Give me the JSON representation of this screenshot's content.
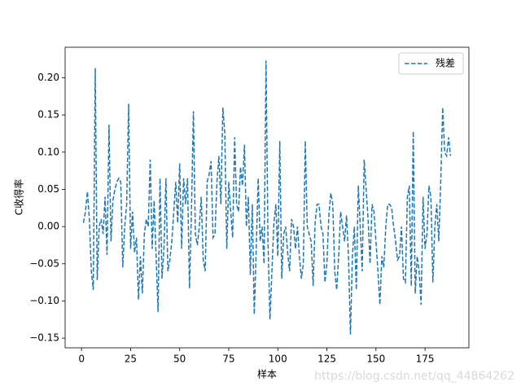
{
  "chart_data": {
    "type": "line",
    "xlabel": "样本",
    "ylabel": "C收得率",
    "watermark": "https://blog.csdn.net/qq_44864262",
    "x": [
      1,
      2,
      3,
      4,
      5,
      6,
      7,
      8,
      9,
      10,
      11,
      12,
      13,
      14,
      15,
      16,
      17,
      18,
      19,
      20,
      21,
      22,
      23,
      24,
      25,
      26,
      27,
      28,
      29,
      30,
      31,
      32,
      33,
      34,
      35,
      36,
      37,
      38,
      39,
      40,
      41,
      42,
      43,
      44,
      45,
      46,
      47,
      48,
      49,
      50,
      51,
      52,
      53,
      54,
      55,
      56,
      57,
      58,
      59,
      60,
      61,
      62,
      63,
      64,
      65,
      66,
      67,
      68,
      69,
      70,
      71,
      72,
      73,
      74,
      75,
      76,
      77,
      78,
      79,
      80,
      81,
      82,
      83,
      84,
      85,
      86,
      87,
      88,
      89,
      90,
      91,
      92,
      93,
      94,
      95,
      96,
      97,
      98,
      99,
      100,
      101,
      102,
      103,
      104,
      105,
      106,
      107,
      108,
      109,
      110,
      111,
      112,
      113,
      114,
      115,
      116,
      117,
      118,
      119,
      120,
      121,
      122,
      123,
      124,
      125,
      126,
      127,
      128,
      129,
      130,
      131,
      132,
      133,
      134,
      135,
      136,
      137,
      138,
      139,
      140,
      141,
      142,
      143,
      144,
      145,
      146,
      147,
      148,
      149,
      150,
      151,
      152,
      153,
      154,
      155,
      156,
      157,
      158,
      159,
      160,
      161,
      162,
      163,
      164,
      165,
      166,
      167,
      168,
      169,
      170,
      171,
      172,
      173,
      174,
      175,
      176,
      177,
      178,
      179,
      180,
      181,
      182,
      183,
      184,
      185,
      186,
      187,
      188
    ],
    "series": [
      {
        "name": "残差",
        "color": "#1f77b4",
        "values": [
          0.005,
          0.02,
          0.047,
          0.01,
          -0.06,
          -0.085,
          0.213,
          -0.072,
          0.0,
          0.01,
          -0.01,
          0.04,
          -0.038,
          0.137,
          -0.02,
          0.035,
          0.05,
          0.06,
          0.065,
          0.06,
          -0.055,
          0.0,
          0.03,
          0.165,
          -0.03,
          0.02,
          -0.035,
          -0.015,
          -0.098,
          -0.04,
          -0.09,
          -0.01,
          0.01,
          0.0,
          0.09,
          -0.03,
          0.035,
          -0.04,
          -0.115,
          0.065,
          -0.07,
          -0.03,
          0.065,
          -0.06,
          -0.045,
          -0.02,
          0.02,
          0.06,
          0.005,
          0.085,
          -0.03,
          0.065,
          0.03,
          0.065,
          -0.083,
          0.02,
          0.155,
          -0.01,
          -0.025,
          0.0,
          0.04,
          -0.045,
          -0.06,
          0.06,
          0.07,
          0.088,
          -0.015,
          -0.01,
          0.06,
          0.095,
          0.03,
          0.16,
          0.125,
          -0.03,
          0.06,
          0.02,
          -0.015,
          0.12,
          0.03,
          0.02,
          0.08,
          0.055,
          0.11,
          0.0,
          0.04,
          -0.065,
          0.03,
          -0.118,
          -0.03,
          0.065,
          -0.02,
          0.0,
          -0.05,
          0.223,
          -0.02,
          -0.125,
          -0.06,
          0.005,
          0.03,
          -0.04,
          0.115,
          -0.07,
          -0.01,
          0.0,
          -0.035,
          -0.06,
          0.01,
          0.0,
          -0.03,
          0.0,
          -0.04,
          -0.07,
          -0.05,
          0.115,
          0.0,
          -0.01,
          -0.02,
          -0.08,
          0.005,
          0.03,
          0.03,
          0.0,
          -0.01,
          -0.075,
          -0.05,
          0.015,
          0.045,
          0.03,
          -0.06,
          -0.085,
          -0.04,
          0.02,
          0.0,
          -0.02,
          0.015,
          -0.04,
          -0.145,
          -0.04,
          0.0,
          -0.085,
          0.055,
          0.0,
          -0.06,
          0.09,
          0.05,
          0.01,
          -0.05,
          0.03,
          0.02,
          -0.02,
          -0.06,
          -0.105,
          -0.04,
          -0.055,
          0.0,
          0.03,
          0.03,
          0.025,
          0.0,
          -0.02,
          -0.045,
          -0.04,
          0.0,
          -0.07,
          -0.075,
          0.04,
          0.055,
          -0.08,
          0.128,
          -0.09,
          -0.04,
          -0.06,
          -0.105,
          0.04,
          -0.03,
          -0.01,
          0.055,
          0.04,
          -0.075,
          0.0,
          0.03,
          -0.02,
          0.06,
          0.16,
          0.1,
          0.095,
          0.12,
          0.095
        ]
      }
    ],
    "xlim": [
      -8.35,
      197.35
    ],
    "ylim": [
      -0.163,
      0.241
    ],
    "xticks": [
      0,
      25,
      50,
      75,
      100,
      125,
      150,
      175
    ],
    "yticks": [
      {
        "value": -0.15,
        "label": "−0.15"
      },
      {
        "value": -0.1,
        "label": "−0.10"
      },
      {
        "value": -0.05,
        "label": "−0.05"
      },
      {
        "value": 0,
        "label": "0.00"
      },
      {
        "value": 0.05,
        "label": "0.05"
      },
      {
        "value": 0.1,
        "label": "0.10"
      },
      {
        "value": 0.15,
        "label": "0.15"
      },
      {
        "value": 0.2,
        "label": "0.20"
      }
    ],
    "legend": "upper right",
    "linestyle": "dashed"
  }
}
